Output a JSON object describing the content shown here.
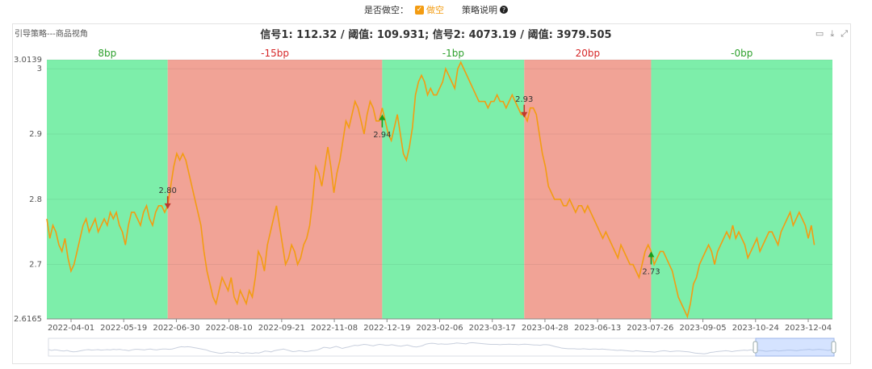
{
  "header": {
    "short_label": "是否做空：",
    "checkbox_label": "做空",
    "checkbox_checked": true,
    "strategy_link": "策略说明",
    "help_icon": "question-circle-icon"
  },
  "panel": {
    "label": "引导策略---商品视角",
    "title": "信号1: 112.32 / 阈值: 109.931; 信号2: 4073.19 / 阈值: 3979.505",
    "tools": [
      "image-icon",
      "download-icon",
      "expand-icon"
    ]
  },
  "colors": {
    "line": "#f39c12",
    "long_band": "#7deeaa",
    "short_band": "#f1a396",
    "pos_text": "#2ca02c",
    "neg_text": "#d62728"
  },
  "chart_data": {
    "type": "line",
    "x_ticks": [
      "2022-04-01",
      "2022-05-19",
      "2022-06-30",
      "2022-08-10",
      "2022-09-21",
      "2022-11-08",
      "2022-12-19",
      "2023-02-06",
      "2023-03-17",
      "2023-04-28",
      "2023-06-13",
      "2023-07-26",
      "2023-09-05",
      "2023-10-24",
      "2023-12-04"
    ],
    "y_ticks": [
      "3.0139",
      "3",
      "2.9",
      "2.8",
      "2.7",
      "2.6165"
    ],
    "y_tick_values": [
      3.0139,
      3.0,
      2.9,
      2.8,
      2.7,
      2.6165
    ],
    "ylim": [
      2.6165,
      3.0139
    ],
    "x_range": [
      0,
      260
    ],
    "bands": [
      {
        "x0": 0,
        "x1": 40,
        "label": "8bp",
        "sign": "pos"
      },
      {
        "x0": 40,
        "x1": 111,
        "label": "-15bp",
        "sign": "neg"
      },
      {
        "x0": 111,
        "x1": 158,
        "label": "-1bp",
        "sign": "pos"
      },
      {
        "x0": 158,
        "x1": 200,
        "label": "20bp",
        "sign": "neg"
      },
      {
        "x0": 200,
        "x1": 260,
        "label": "-0bp",
        "sign": "pos"
      }
    ],
    "signals": [
      {
        "x": 40,
        "y": 2.79,
        "label": "2.80",
        "dir": "down"
      },
      {
        "x": 111,
        "y": 2.925,
        "label": "2.94",
        "dir": "up"
      },
      {
        "x": 158,
        "y": 2.93,
        "label": "2.93",
        "dir": "down"
      },
      {
        "x": 200,
        "y": 2.715,
        "label": "2.73",
        "dir": "up"
      }
    ],
    "series": [
      {
        "values": [
          2.77,
          2.74,
          2.76,
          2.75,
          2.73,
          2.72,
          2.74,
          2.71,
          2.69,
          2.7,
          2.72,
          2.74,
          2.76,
          2.77,
          2.75,
          2.76,
          2.77,
          2.75,
          2.76,
          2.77,
          2.76,
          2.78,
          2.77,
          2.78,
          2.76,
          2.75,
          2.73,
          2.76,
          2.78,
          2.78,
          2.77,
          2.76,
          2.78,
          2.79,
          2.77,
          2.76,
          2.78,
          2.79,
          2.79,
          2.78,
          2.79,
          2.82,
          2.85,
          2.87,
          2.86,
          2.87,
          2.86,
          2.84,
          2.82,
          2.8,
          2.78,
          2.76,
          2.72,
          2.69,
          2.67,
          2.65,
          2.64,
          2.66,
          2.68,
          2.67,
          2.66,
          2.68,
          2.65,
          2.64,
          2.66,
          2.65,
          2.64,
          2.66,
          2.65,
          2.68,
          2.72,
          2.71,
          2.69,
          2.73,
          2.75,
          2.77,
          2.79,
          2.76,
          2.73,
          2.7,
          2.71,
          2.73,
          2.72,
          2.7,
          2.71,
          2.73,
          2.74,
          2.76,
          2.8,
          2.85,
          2.84,
          2.82,
          2.85,
          2.88,
          2.85,
          2.81,
          2.84,
          2.86,
          2.89,
          2.92,
          2.91,
          2.93,
          2.95,
          2.94,
          2.92,
          2.9,
          2.93,
          2.95,
          2.94,
          2.92,
          2.92,
          2.94,
          2.92,
          2.9,
          2.89,
          2.91,
          2.93,
          2.9,
          2.87,
          2.86,
          2.88,
          2.91,
          2.96,
          2.98,
          2.99,
          2.98,
          2.96,
          2.97,
          2.96,
          2.96,
          2.97,
          2.98,
          3.0,
          2.99,
          2.98,
          2.97,
          3.0,
          3.01,
          3.0,
          2.99,
          2.98,
          2.97,
          2.96,
          2.95,
          2.95,
          2.95,
          2.94,
          2.95,
          2.95,
          2.96,
          2.95,
          2.95,
          2.94,
          2.95,
          2.96,
          2.95,
          2.94,
          2.93,
          2.93,
          2.92,
          2.94,
          2.94,
          2.93,
          2.9,
          2.87,
          2.85,
          2.82,
          2.81,
          2.8,
          2.8,
          2.8,
          2.79,
          2.79,
          2.8,
          2.79,
          2.78,
          2.79,
          2.79,
          2.78,
          2.79,
          2.78,
          2.77,
          2.76,
          2.75,
          2.74,
          2.75,
          2.74,
          2.73,
          2.72,
          2.71,
          2.73,
          2.72,
          2.71,
          2.7,
          2.7,
          2.69,
          2.68,
          2.7,
          2.72,
          2.73,
          2.72,
          2.7,
          2.71,
          2.72,
          2.72,
          2.71,
          2.7,
          2.69,
          2.67,
          2.65,
          2.64,
          2.63,
          2.62,
          2.64,
          2.67,
          2.68,
          2.7,
          2.71,
          2.72,
          2.73,
          2.72,
          2.7,
          2.72,
          2.73,
          2.74,
          2.75,
          2.74,
          2.76,
          2.74,
          2.75,
          2.74,
          2.73,
          2.71,
          2.72,
          2.73,
          2.74,
          2.72,
          2.73,
          2.74,
          2.75,
          2.75,
          2.74,
          2.73,
          2.75,
          2.76,
          2.77,
          2.78,
          2.76,
          2.77,
          2.78,
          2.77,
          2.76,
          2.74,
          2.76,
          2.73
        ]
      }
    ]
  }
}
